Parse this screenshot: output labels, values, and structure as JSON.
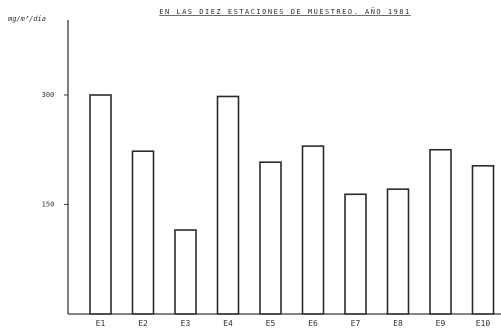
{
  "chart_data": {
    "type": "bar",
    "title": "EN LAS DIEZ ESTACIONES DE MUESTREO. AÑO 1981",
    "ylabel": "mg/m³/día",
    "xlabel": "",
    "ylim": [
      0,
      300
    ],
    "yticks": [
      150,
      300
    ],
    "grid": false,
    "categories": [
      "E1",
      "E2",
      "E3",
      "E4",
      "E5",
      "E6",
      "E7",
      "E8",
      "E9",
      "E10"
    ],
    "values": [
      300,
      223,
      115,
      298,
      208,
      230,
      164,
      171,
      225,
      203
    ]
  },
  "colors": {
    "ink": "#2a2a2a",
    "background": "#ffffff"
  }
}
